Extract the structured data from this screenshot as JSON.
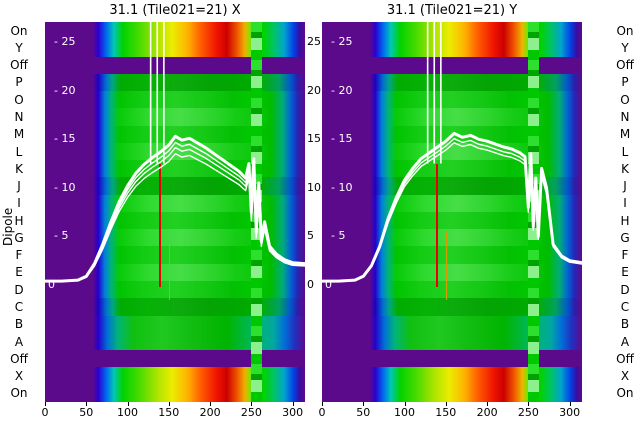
{
  "y_axis_label": "Dipole",
  "dipole_labels": [
    "On",
    "Y",
    "Off",
    "P",
    "O",
    "N",
    "M",
    "L",
    "K",
    "J",
    "I",
    "H",
    "G",
    "F",
    "E",
    "D",
    "C",
    "B",
    "A",
    "Off",
    "X",
    "On"
  ],
  "colors": {
    "low_purple": "#5c0a8c",
    "curve_white": "#ffffff",
    "marker_red": "#e80000",
    "marker_orange": "#d89c00",
    "stripe_green": "#2ee02e"
  },
  "chart_data": [
    {
      "type": "heatmap",
      "title": "31.1 (Tile021=21) X",
      "xlabel": "",
      "ylabel": "Dipole",
      "x_range": [
        0,
        315
      ],
      "x_max": 315,
      "x_ticks": [
        0,
        50,
        100,
        150,
        200,
        250,
        300
      ],
      "y_ticks": [
        25,
        20,
        15,
        10,
        5,
        0
      ],
      "overlay_y_range": [
        0,
        25
      ],
      "grid": false,
      "legend": false,
      "rows": [
        {
          "label": "On",
          "kind": "rainbow"
        },
        {
          "label": "Y",
          "kind": "rainbow"
        },
        {
          "label": "Off",
          "kind": "off"
        },
        {
          "label": "P",
          "kind": "green-dark"
        },
        {
          "label": "O",
          "kind": "green"
        },
        {
          "label": "N",
          "kind": "green-light"
        },
        {
          "label": "M",
          "kind": "green"
        },
        {
          "label": "L",
          "kind": "green-light"
        },
        {
          "label": "K",
          "kind": "green"
        },
        {
          "label": "J",
          "kind": "green-dark"
        },
        {
          "label": "I",
          "kind": "green-light"
        },
        {
          "label": "H",
          "kind": "green"
        },
        {
          "label": "G",
          "kind": "green-light"
        },
        {
          "label": "F",
          "kind": "green"
        },
        {
          "label": "E",
          "kind": "green-light"
        },
        {
          "label": "D",
          "kind": "green"
        },
        {
          "label": "C",
          "kind": "green-dark"
        },
        {
          "label": "B",
          "kind": "green-blue"
        },
        {
          "label": "A",
          "kind": "green-blue"
        },
        {
          "label": "Off",
          "kind": "off"
        },
        {
          "label": "X",
          "kind": "rainbow"
        },
        {
          "label": "On",
          "kind": "rainbow"
        }
      ],
      "features": {
        "stripe_x": [
          250,
          263
        ],
        "red_line": {
          "x": 138,
          "v_top": 12.5,
          "v_bottom": -0.2
        },
        "orange_line": {
          "x": 150,
          "v_top": 5.6,
          "v_bottom": -1.5
        },
        "spikes": [
          {
            "x": 128
          },
          {
            "x": 136
          },
          {
            "x": 144
          }
        ]
      },
      "line_offsets": [
        0,
        6,
        11,
        17
      ],
      "white_curve": {
        "x": [
          0,
          20,
          40,
          50,
          60,
          70,
          80,
          90,
          100,
          110,
          120,
          130,
          140,
          150,
          158,
          166,
          175,
          185,
          195,
          205,
          215,
          225,
          235,
          243,
          247,
          250,
          253,
          256,
          259,
          262,
          266,
          272,
          280,
          290,
          300,
          315
        ],
        "v": [
          0.4,
          0.4,
          0.5,
          0.9,
          2.2,
          4.2,
          6.5,
          8.6,
          10.2,
          11.5,
          12.4,
          13.1,
          13.7,
          14.4,
          15.3,
          14.9,
          15.1,
          14.6,
          14.1,
          13.5,
          12.9,
          12.3,
          11.7,
          11.0,
          12.5,
          7.5,
          13.0,
          5.5,
          10.5,
          4.5,
          6.5,
          4.0,
          3.2,
          2.6,
          2.3,
          2.2
        ]
      }
    },
    {
      "type": "heatmap",
      "title": "31.1 (Tile021=21) Y",
      "xlabel": "",
      "ylabel": "Dipole",
      "x_range": [
        0,
        315
      ],
      "x_max": 315,
      "x_ticks": [
        0,
        50,
        100,
        150,
        200,
        250,
        300
      ],
      "y_ticks": [
        25,
        20,
        15,
        10,
        5,
        0
      ],
      "overlay_y_range": [
        0,
        25
      ],
      "grid": false,
      "legend": false,
      "rows": [
        {
          "label": "On",
          "kind": "rainbow"
        },
        {
          "label": "Y",
          "kind": "rainbow"
        },
        {
          "label": "Off",
          "kind": "off"
        },
        {
          "label": "P",
          "kind": "green-dark"
        },
        {
          "label": "O",
          "kind": "green"
        },
        {
          "label": "N",
          "kind": "green-light"
        },
        {
          "label": "M",
          "kind": "green"
        },
        {
          "label": "L",
          "kind": "green-light"
        },
        {
          "label": "K",
          "kind": "green"
        },
        {
          "label": "J",
          "kind": "green-dark"
        },
        {
          "label": "I",
          "kind": "green-light"
        },
        {
          "label": "H",
          "kind": "green"
        },
        {
          "label": "G",
          "kind": "green-light"
        },
        {
          "label": "F",
          "kind": "green"
        },
        {
          "label": "E",
          "kind": "green-light"
        },
        {
          "label": "D",
          "kind": "green"
        },
        {
          "label": "C",
          "kind": "green-dark"
        },
        {
          "label": "B",
          "kind": "green-blue"
        },
        {
          "label": "A",
          "kind": "green-blue"
        },
        {
          "label": "Off",
          "kind": "off"
        },
        {
          "label": "X",
          "kind": "rainbow"
        },
        {
          "label": "On",
          "kind": "rainbow"
        }
      ],
      "features": {
        "stripe_x": [
          250,
          263
        ],
        "red_line": {
          "x": 138,
          "v_top": 12.5,
          "v_bottom": -0.2
        },
        "orange_line": {
          "x": 150,
          "v_top": 5.6,
          "v_bottom": -1.5
        },
        "spikes": [
          {
            "x": 128
          },
          {
            "x": 136
          },
          {
            "x": 144
          }
        ]
      },
      "line_offsets": [
        0,
        5,
        9
      ],
      "white_curve": {
        "x": [
          0,
          20,
          40,
          50,
          60,
          70,
          80,
          90,
          100,
          110,
          120,
          130,
          140,
          150,
          160,
          170,
          180,
          190,
          200,
          210,
          220,
          230,
          240,
          246,
          250,
          253,
          256,
          259,
          262,
          266,
          272,
          280,
          290,
          300,
          315
        ],
        "v": [
          0.4,
          0.4,
          0.5,
          0.9,
          2.0,
          4.0,
          6.8,
          9.0,
          10.8,
          12.0,
          13.0,
          13.6,
          14.2,
          14.8,
          15.6,
          15.2,
          15.4,
          15.0,
          14.8,
          14.5,
          14.2,
          14.0,
          13.6,
          13.2,
          8.0,
          13.5,
          6.0,
          11.0,
          5.0,
          12.0,
          10.0,
          4.2,
          3.0,
          2.5,
          2.3
        ]
      }
    }
  ]
}
